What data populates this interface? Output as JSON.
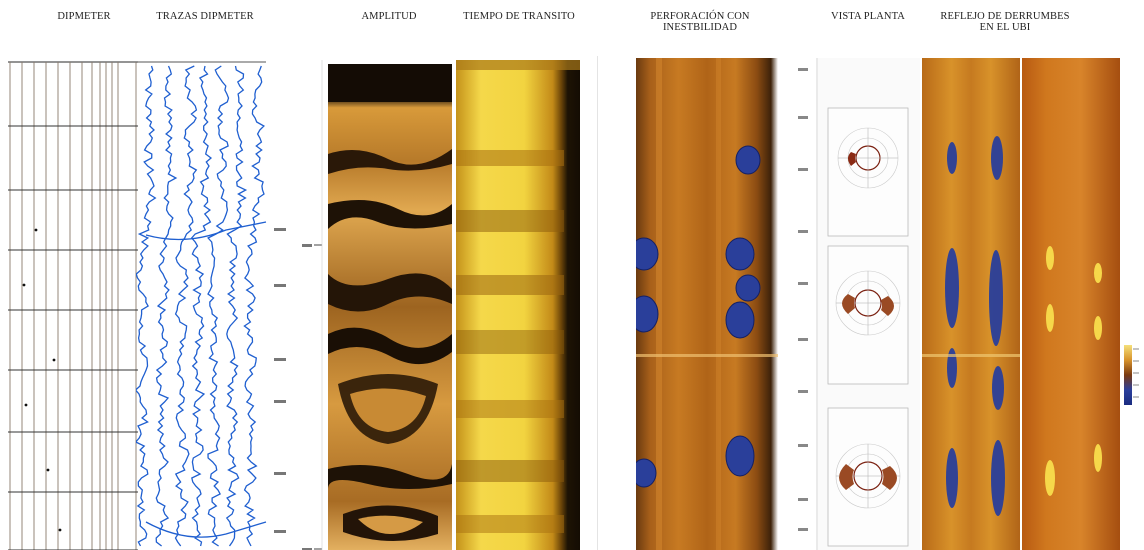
{
  "headers": {
    "dipmeter": "DIPMETER",
    "trazas": "TRAZAS DIPMETER",
    "amplitud": "AMPLITUD",
    "tiempo": "TIEMPO DE TRANSITO",
    "perforacion": "PERFORACIÓN CON INESTBILIDAD",
    "vista": "VISTA PLANTA",
    "reflejo": "REFLEJO DE DERRUMBES EN EL UBI"
  },
  "colors": {
    "dipmeter_line": "#8a7a6a",
    "trace_blue": "#1f5fd0",
    "amplitude_orange": "#d4902a",
    "transit_yellow": "#f4d640",
    "borehole_orange": "#c9701a",
    "cavity_blue": "#2a3f9a"
  }
}
